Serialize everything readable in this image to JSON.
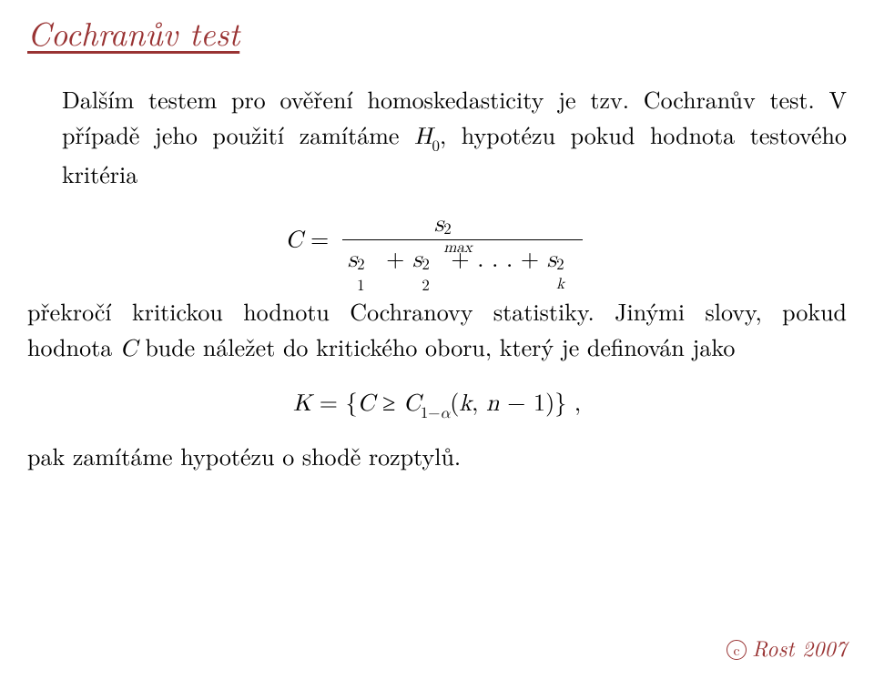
{
  "title": "Cochranův test",
  "para1_a": "Dalším testem pro ověření homoskedasticity je tzv. Cochranův test. V případě jeho použití zamítáme ",
  "para1_b": ", hypotézu pokud hodnota testového kritéria",
  "H_sym": "H",
  "H_sub": "0",
  "formula": {
    "C": "C",
    "eq": " = ",
    "s": "s",
    "two": "2",
    "max": "max",
    "plus": " + ",
    "dots": ". . .",
    "one": "1",
    "two_sub": "2",
    "k": "k"
  },
  "para2_a": "překročí kritickou hodnotu Cochranovy statistiky. Jinými slovy, pokud hodnota ",
  "para2_b": " bude náležet do kritického oboru, který je definován jako",
  "C_sym": "C",
  "formula2": {
    "K": "K",
    "eq": " = ",
    "lb": "{",
    "C": "C",
    "geq": " ≥ ",
    "C1": "C",
    "one": "1",
    "minus": "−",
    "alpha": "α",
    "lp": "(",
    "k": "k",
    "comma": ", ",
    "n": "n",
    "minus2": " − ",
    "one2": "1",
    "rp": ")",
    "rb": "}",
    "tail": " ,"
  },
  "para3": "pak zamítáme hypotézu o shodě rozptylů.",
  "footer": {
    "c": "c",
    "text": "Rost 2007"
  },
  "colors": {
    "accent": "#993333",
    "text": "#000000",
    "bg": "#ffffff"
  }
}
